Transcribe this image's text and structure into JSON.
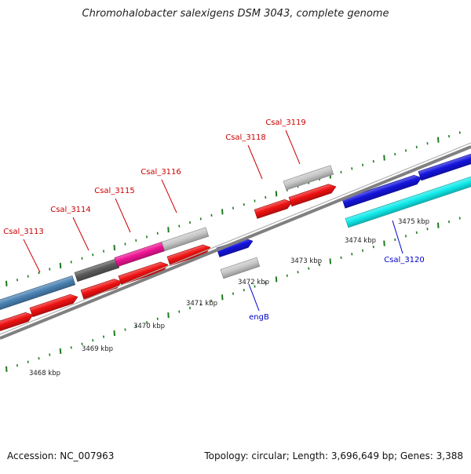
{
  "title": "Chromohalobacter salexigens DSM 3043, complete genome",
  "footer": {
    "accession": "Accession: NC_007963",
    "summary": "Topology: circular; Length: 3,696,649 bp; Genes: 3,388"
  },
  "scale_labels": [
    "3468 kbp",
    "3469 kbp",
    "3470 kbp",
    "3471 kbp",
    "3472 kbp",
    "3473 kbp",
    "3474 kbp",
    "3475 kbp"
  ],
  "gene_labels": [
    {
      "text": "Csal_3113",
      "color": "#cc0000"
    },
    {
      "text": "Csal_3114",
      "color": "#cc0000"
    },
    {
      "text": "Csal_3115",
      "color": "#cc0000"
    },
    {
      "text": "Csal_3116",
      "color": "#cc0000"
    },
    {
      "text": "Csal_3118",
      "color": "#cc0000"
    },
    {
      "text": "Csal_3119",
      "color": "#cc0000"
    },
    {
      "text": "engB",
      "color": "#0000cc"
    },
    {
      "text": "Csal_3120",
      "color": "#0000cc"
    }
  ],
  "colors": {
    "cds": "#ee1111",
    "steel": "#4a82b4",
    "gray": "#c8c8c8",
    "darkgray": "#5a5a5a",
    "magenta": "#ee1493",
    "blue": "#1414dd",
    "cyan": "#11eaea",
    "backbone": "#808080",
    "tick": "#1f7a1f"
  }
}
